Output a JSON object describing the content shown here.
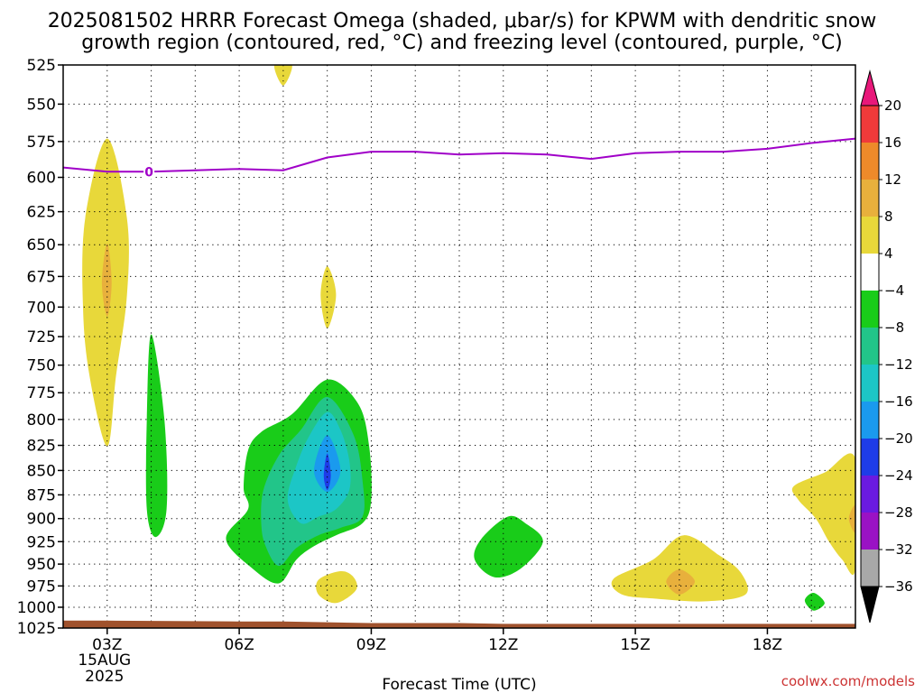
{
  "title": {
    "line1": "2025081502 HRRR Forecast Omega (shaded, μbar/s) for KPWM with dendritic snow",
    "line2": "growth region (contoured, red, °C) and freezing level (contoured, purple, °C)"
  },
  "watermark": "coolwx.com/models",
  "chart_data": {
    "type": "heatmap",
    "title": "2025081502 HRRR Forecast Omega (shaded, μbar/s) for KPWM with dendritic snow growth region (contoured, red, °C) and freezing level (contoured, purple, °C)",
    "xlabel": "Forecast Time (UTC)",
    "ylabel": "",
    "x_range_hours_utc": [
      2,
      20
    ],
    "y_range_hPa": [
      1025,
      525
    ],
    "y_scale": "log-pressure",
    "grid": true,
    "x_ticks": [
      {
        "hour": 3,
        "label": "03Z",
        "sub1": "15AUG",
        "sub2": "2025"
      },
      {
        "hour": 6,
        "label": "06Z"
      },
      {
        "hour": 9,
        "label": "09Z"
      },
      {
        "hour": 12,
        "label": "12Z"
      },
      {
        "hour": 15,
        "label": "15Z"
      },
      {
        "hour": 18,
        "label": "18Z"
      }
    ],
    "y_ticks": [
      525,
      550,
      575,
      600,
      625,
      650,
      675,
      700,
      725,
      750,
      775,
      800,
      825,
      850,
      875,
      900,
      925,
      950,
      975,
      1000,
      1025
    ],
    "colorbar": {
      "labels": [
        "20",
        "16",
        "12",
        "8",
        "4",
        "−4",
        "−8",
        "−12",
        "−16",
        "−20",
        "−24",
        "−28",
        "−32",
        "−36"
      ],
      "colors": [
        "#e8187a",
        "#f03a3a",
        "#ee8a2a",
        "#e8b03c",
        "#e8d83a",
        "#ffffff",
        "#19cc19",
        "#22c589",
        "#1cc6c6",
        "#1a9aee",
        "#1e3ce8",
        "#6a1ae0",
        "#9a12c4",
        "#a8a8a8",
        "#000000"
      ]
    },
    "freezing_level": {
      "label": "0",
      "color": "#a000c8",
      "points": [
        [
          2,
          593
        ],
        [
          3,
          596
        ],
        [
          4,
          596
        ],
        [
          5,
          595
        ],
        [
          6,
          594
        ],
        [
          7,
          595
        ],
        [
          8,
          586
        ],
        [
          9,
          582
        ],
        [
          10,
          582
        ],
        [
          11,
          584
        ],
        [
          12,
          583
        ],
        [
          13,
          584
        ],
        [
          14,
          587
        ],
        [
          15,
          583
        ],
        [
          16,
          582
        ],
        [
          17,
          582
        ],
        [
          18,
          580
        ],
        [
          19,
          576
        ],
        [
          20,
          573
        ]
      ]
    },
    "terrain": {
      "color": "#a0522d",
      "points": [
        [
          2,
          1016
        ],
        [
          3,
          1016
        ],
        [
          6,
          1017
        ],
        [
          7,
          1017
        ],
        [
          8,
          1018
        ],
        [
          9,
          1019
        ],
        [
          10,
          1019
        ],
        [
          11,
          1019
        ],
        [
          12,
          1020
        ],
        [
          20,
          1020
        ]
      ]
    },
    "omega_regions": [
      {
        "name": "ascent-0z-3z",
        "level": "4 to 8",
        "color": "#e8d83a",
        "points": [
          [
            3.0,
            573
          ],
          [
            2.5,
            630
          ],
          [
            2.45,
            700
          ],
          [
            2.6,
            760
          ],
          [
            3.0,
            826
          ],
          [
            3.2,
            760
          ],
          [
            3.45,
            690
          ],
          [
            3.45,
            630
          ]
        ]
      },
      {
        "name": "ascent-0z-3z-core",
        "level": "8 to 12",
        "color": "#e8b03c",
        "points": [
          [
            3.0,
            649
          ],
          [
            2.88,
            680
          ],
          [
            3.0,
            708
          ],
          [
            3.1,
            680
          ]
        ]
      },
      {
        "name": "ascent-top",
        "level": "4 to 8",
        "color": "#e8d83a",
        "points": [
          [
            6.8,
            525
          ],
          [
            7.2,
            525
          ],
          [
            7.0,
            538
          ]
        ]
      },
      {
        "name": "ascent-7z",
        "level": "4 to 8",
        "color": "#e8d83a",
        "points": [
          [
            8.0,
            667
          ],
          [
            7.85,
            690
          ],
          [
            8.0,
            718
          ],
          [
            8.2,
            690
          ]
        ]
      },
      {
        "name": "descent-4z",
        "level": "−4 to −8",
        "color": "#19cc19",
        "points": [
          [
            4.0,
            723
          ],
          [
            3.9,
            800
          ],
          [
            3.9,
            890
          ],
          [
            4.1,
            920
          ],
          [
            4.35,
            890
          ],
          [
            4.3,
            800
          ]
        ]
      },
      {
        "name": "descent-8z-outer",
        "level": "−4 to −8",
        "color": "#19cc19",
        "points": [
          [
            8.0,
            763
          ],
          [
            7.2,
            795
          ],
          [
            6.5,
            812
          ],
          [
            6.2,
            830
          ],
          [
            6.1,
            868
          ],
          [
            6.2,
            890
          ],
          [
            5.7,
            922
          ],
          [
            6.3,
            955
          ],
          [
            6.9,
            972
          ],
          [
            7.3,
            945
          ],
          [
            7.7,
            930
          ],
          [
            8.2,
            918
          ],
          [
            8.8,
            905
          ],
          [
            9.0,
            880
          ],
          [
            8.95,
            825
          ],
          [
            8.7,
            785
          ]
        ]
      },
      {
        "name": "descent-8z-mid",
        "level": "−8 to −12",
        "color": "#22c589",
        "points": [
          [
            8.0,
            779
          ],
          [
            7.4,
            810
          ],
          [
            6.9,
            835
          ],
          [
            6.55,
            870
          ],
          [
            6.5,
            905
          ],
          [
            6.6,
            930
          ],
          [
            6.9,
            952
          ],
          [
            7.3,
            932
          ],
          [
            7.8,
            918
          ],
          [
            8.3,
            910
          ],
          [
            8.8,
            898
          ],
          [
            8.8,
            860
          ],
          [
            8.6,
            815
          ]
        ]
      },
      {
        "name": "descent-8z-inner",
        "level": "−12 to −16",
        "color": "#1cc6c6",
        "points": [
          [
            8.0,
            793
          ],
          [
            7.6,
            815
          ],
          [
            7.3,
            845
          ],
          [
            7.1,
            880
          ],
          [
            7.4,
            905
          ],
          [
            7.8,
            898
          ],
          [
            8.2,
            890
          ],
          [
            8.5,
            870
          ],
          [
            8.5,
            840
          ],
          [
            8.3,
            810
          ]
        ]
      },
      {
        "name": "descent-8z-core",
        "level": "−16 to −20",
        "color": "#1a9aee",
        "points": [
          [
            8.0,
            815
          ],
          [
            7.7,
            850
          ],
          [
            8.0,
            872
          ],
          [
            8.3,
            850
          ]
        ]
      },
      {
        "name": "descent-8z-peak",
        "level": "−20 to −24",
        "color": "#1e3ce8",
        "points": [
          [
            8.0,
            833
          ],
          [
            7.92,
            855
          ],
          [
            8.0,
            870
          ],
          [
            8.08,
            855
          ]
        ]
      },
      {
        "name": "ascent-8z-low",
        "level": "4 to 8",
        "color": "#e8d83a",
        "points": [
          [
            8.3,
            958
          ],
          [
            7.8,
            968
          ],
          [
            7.8,
            985
          ],
          [
            8.2,
            995
          ],
          [
            8.65,
            980
          ],
          [
            8.6,
            965
          ]
        ]
      },
      {
        "name": "descent-12z",
        "level": "−4 to −8",
        "color": "#19cc19",
        "points": [
          [
            12.1,
            898
          ],
          [
            11.5,
            922
          ],
          [
            11.35,
            945
          ],
          [
            11.8,
            965
          ],
          [
            12.4,
            955
          ],
          [
            12.9,
            925
          ],
          [
            12.5,
            905
          ]
        ]
      },
      {
        "name": "ascent-16z",
        "level": "4 to 8",
        "color": "#e8d83a",
        "points": [
          [
            16.1,
            918
          ],
          [
            15.4,
            945
          ],
          [
            14.5,
            967
          ],
          [
            14.7,
            985
          ],
          [
            15.5,
            990
          ],
          [
            16.6,
            993
          ],
          [
            17.5,
            985
          ],
          [
            17.4,
            960
          ],
          [
            16.9,
            940
          ]
        ]
      },
      {
        "name": "ascent-16z-core",
        "level": "8 to 12",
        "color": "#e8b03c",
        "points": [
          [
            16.0,
            956
          ],
          [
            15.7,
            970
          ],
          [
            16.0,
            985
          ],
          [
            16.35,
            970
          ]
        ]
      },
      {
        "name": "descent-19z",
        "level": "−4 to −8",
        "color": "#19cc19",
        "points": [
          [
            19.05,
            983
          ],
          [
            18.85,
            992
          ],
          [
            19.05,
            1004
          ],
          [
            19.3,
            995
          ]
        ]
      },
      {
        "name": "ascent-19z-20z",
        "level": "4 to 8",
        "color": "#e8d83a",
        "points": [
          [
            20,
            838
          ],
          [
            19.3,
            852
          ],
          [
            18.6,
            866
          ],
          [
            18.7,
            880
          ],
          [
            19.1,
            900
          ],
          [
            19.4,
            925
          ],
          [
            19.7,
            945
          ],
          [
            20,
            955
          ]
        ]
      },
      {
        "name": "ascent-20z-core",
        "level": "8 to 12",
        "color": "#e8b03c",
        "points": [
          [
            20,
            886
          ],
          [
            19.85,
            900
          ],
          [
            20,
            915
          ]
        ]
      }
    ]
  }
}
